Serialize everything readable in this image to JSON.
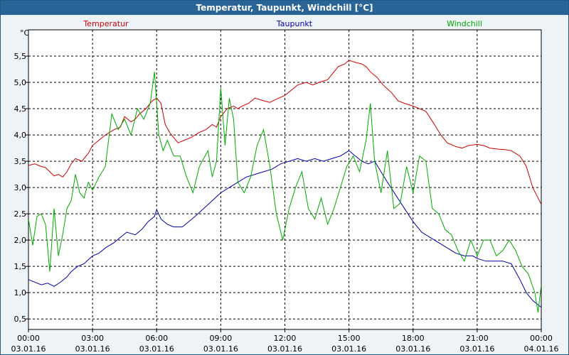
{
  "chart_data": {
    "type": "line",
    "title": "Temperatur, Taupunkt, Windchill [°C]",
    "unit_label": "°C",
    "ylim": [
      0.3,
      6.0
    ],
    "y_ticks": [
      0.5,
      1.0,
      1.5,
      2.0,
      2.5,
      3.0,
      3.5,
      4.0,
      4.5,
      5.0,
      5.5
    ],
    "y_tick_labels": [
      "0,5",
      "1,0",
      "1,5",
      "2,0",
      "2,5",
      "3,0",
      "3,5",
      "4,0",
      "4,5",
      "5,0",
      "5,5"
    ],
    "xlim": [
      0,
      24
    ],
    "x_ticks": [
      0,
      3,
      6,
      9,
      12,
      15,
      18,
      21,
      24
    ],
    "x_tick_times": [
      "00:00",
      "03:00",
      "06:00",
      "09:00",
      "12:00",
      "15:00",
      "18:00",
      "21:00",
      "00:00"
    ],
    "x_tick_dates": [
      "03.01.16",
      "03.01.16",
      "03.01.16",
      "03.01.16",
      "03.01.16",
      "03.01.16",
      "03.01.16",
      "03.01.16",
      "04.01.16"
    ],
    "series": [
      {
        "name": "Temperatur",
        "color": "#cc0000",
        "x": [
          0,
          0.3,
          0.6,
          0.8,
          1.0,
          1.2,
          1.4,
          1.6,
          1.8,
          2.0,
          2.2,
          2.5,
          2.8,
          3.0,
          3.3,
          3.6,
          4.0,
          4.3,
          4.5,
          4.8,
          5.0,
          5.2,
          5.5,
          5.8,
          6.0,
          6.2,
          6.4,
          6.6,
          6.8,
          7.0,
          7.3,
          7.6,
          7.8,
          8.0,
          8.3,
          8.6,
          8.8,
          9.0,
          9.3,
          9.6,
          9.8,
          10.0,
          10.3,
          10.6,
          11.0,
          11.3,
          11.6,
          12.0,
          12.3,
          12.6,
          13.0,
          13.3,
          13.6,
          14.0,
          14.3,
          14.5,
          14.8,
          15.0,
          15.3,
          15.6,
          15.8,
          16.0,
          16.3,
          16.6,
          17.0,
          17.3,
          17.6,
          18.0,
          18.3,
          18.6,
          19.0,
          19.3,
          19.6,
          20.0,
          20.3,
          20.6,
          21.0,
          21.3,
          21.6,
          22.0,
          22.3,
          22.6,
          23.0,
          23.3,
          23.6,
          24.0
        ],
        "values": [
          3.42,
          3.45,
          3.4,
          3.38,
          3.3,
          3.22,
          3.25,
          3.2,
          3.3,
          3.45,
          3.55,
          3.5,
          3.65,
          3.8,
          3.9,
          4.0,
          4.1,
          4.15,
          4.35,
          4.25,
          4.3,
          4.4,
          4.5,
          4.65,
          4.7,
          4.6,
          4.2,
          4.05,
          3.95,
          3.85,
          3.9,
          3.95,
          4.0,
          4.05,
          4.1,
          4.2,
          4.15,
          4.35,
          4.5,
          4.55,
          4.5,
          4.55,
          4.6,
          4.7,
          4.65,
          4.62,
          4.68,
          4.75,
          4.85,
          4.95,
          5.0,
          4.95,
          5.0,
          5.05,
          5.2,
          5.3,
          5.35,
          5.42,
          5.38,
          5.35,
          5.3,
          5.2,
          5.1,
          4.95,
          4.8,
          4.65,
          4.6,
          4.55,
          4.5,
          4.45,
          4.2,
          4.0,
          3.85,
          3.78,
          3.75,
          3.8,
          3.82,
          3.8,
          3.75,
          3.73,
          3.72,
          3.7,
          3.6,
          3.4,
          3.0,
          2.68
        ]
      },
      {
        "name": "Taupunkt",
        "color": "#0000aa",
        "x": [
          0,
          0.3,
          0.6,
          0.9,
          1.2,
          1.5,
          1.8,
          2.0,
          2.3,
          2.6,
          3.0,
          3.3,
          3.6,
          4.0,
          4.3,
          4.6,
          5.0,
          5.3,
          5.6,
          5.9,
          6.0,
          6.2,
          6.5,
          6.8,
          7.2,
          7.5,
          7.8,
          8.2,
          8.6,
          9.0,
          9.4,
          9.8,
          10.2,
          10.6,
          11.0,
          11.4,
          11.8,
          12.2,
          12.6,
          13.0,
          13.4,
          13.8,
          14.2,
          14.6,
          15.0,
          15.3,
          15.6,
          15.9,
          16.2,
          16.5,
          16.8,
          17.2,
          17.6,
          18.0,
          18.4,
          18.8,
          19.2,
          19.6,
          20.0,
          20.4,
          20.8,
          21.0,
          21.4,
          21.8,
          22.2,
          22.6,
          23.0,
          23.3,
          23.6,
          24.0
        ],
        "values": [
          1.25,
          1.2,
          1.15,
          1.18,
          1.12,
          1.2,
          1.3,
          1.4,
          1.5,
          1.55,
          1.7,
          1.75,
          1.85,
          1.95,
          2.05,
          2.15,
          2.1,
          2.2,
          2.35,
          2.45,
          2.58,
          2.4,
          2.3,
          2.25,
          2.25,
          2.35,
          2.45,
          2.6,
          2.75,
          2.9,
          3.0,
          3.1,
          3.2,
          3.25,
          3.3,
          3.35,
          3.45,
          3.5,
          3.55,
          3.5,
          3.55,
          3.5,
          3.55,
          3.6,
          3.7,
          3.6,
          3.5,
          3.45,
          3.5,
          3.3,
          3.1,
          2.85,
          2.6,
          2.35,
          2.15,
          2.05,
          1.95,
          1.85,
          1.75,
          1.7,
          1.7,
          1.65,
          1.6,
          1.6,
          1.6,
          1.55,
          1.25,
          1.0,
          0.85,
          0.72
        ]
      },
      {
        "name": "Windchill",
        "color": "#00aa00",
        "x": [
          0,
          0.2,
          0.4,
          0.6,
          0.8,
          1.0,
          1.2,
          1.4,
          1.6,
          1.8,
          2.0,
          2.2,
          2.4,
          2.6,
          2.8,
          3.0,
          3.3,
          3.6,
          3.9,
          4.2,
          4.5,
          4.8,
          5.1,
          5.4,
          5.7,
          5.9,
          6.1,
          6.3,
          6.5,
          6.8,
          7.1,
          7.4,
          7.7,
          8.0,
          8.2,
          8.4,
          8.6,
          8.8,
          9.0,
          9.2,
          9.4,
          9.6,
          9.8,
          10.1,
          10.4,
          10.7,
          11.0,
          11.3,
          11.6,
          11.9,
          12.2,
          12.5,
          12.8,
          13.1,
          13.4,
          13.7,
          14.0,
          14.3,
          14.6,
          14.9,
          15.2,
          15.5,
          15.8,
          16.0,
          16.2,
          16.5,
          16.8,
          17.1,
          17.4,
          17.7,
          18.0,
          18.3,
          18.6,
          18.9,
          19.2,
          19.5,
          19.8,
          20.1,
          20.4,
          20.7,
          21.0,
          21.3,
          21.6,
          21.9,
          22.2,
          22.5,
          22.8,
          23.1,
          23.4,
          23.7,
          23.85,
          24.0
        ],
        "values": [
          2.4,
          1.9,
          2.45,
          2.5,
          2.3,
          1.4,
          2.6,
          1.7,
          2.1,
          2.6,
          2.75,
          3.25,
          2.9,
          2.8,
          3.1,
          2.95,
          3.2,
          3.4,
          4.4,
          4.1,
          4.3,
          4.0,
          4.5,
          4.3,
          4.6,
          5.2,
          4.0,
          3.7,
          3.9,
          3.6,
          3.6,
          3.2,
          2.9,
          3.4,
          3.55,
          3.7,
          3.2,
          3.5,
          4.9,
          3.8,
          4.7,
          4.3,
          3.1,
          2.9,
          3.2,
          3.8,
          4.1,
          3.4,
          2.5,
          2.0,
          2.6,
          3.0,
          3.3,
          2.6,
          2.4,
          2.8,
          2.3,
          2.6,
          3.0,
          3.4,
          3.6,
          3.3,
          3.9,
          4.6,
          3.5,
          2.9,
          3.7,
          2.6,
          2.7,
          3.4,
          2.9,
          3.6,
          3.5,
          2.6,
          2.5,
          2.2,
          2.1,
          1.8,
          1.6,
          2.0,
          1.7,
          2.0,
          2.0,
          1.7,
          1.8,
          2.0,
          1.8,
          1.5,
          1.35,
          1.0,
          0.62,
          1.15
        ]
      }
    ]
  }
}
